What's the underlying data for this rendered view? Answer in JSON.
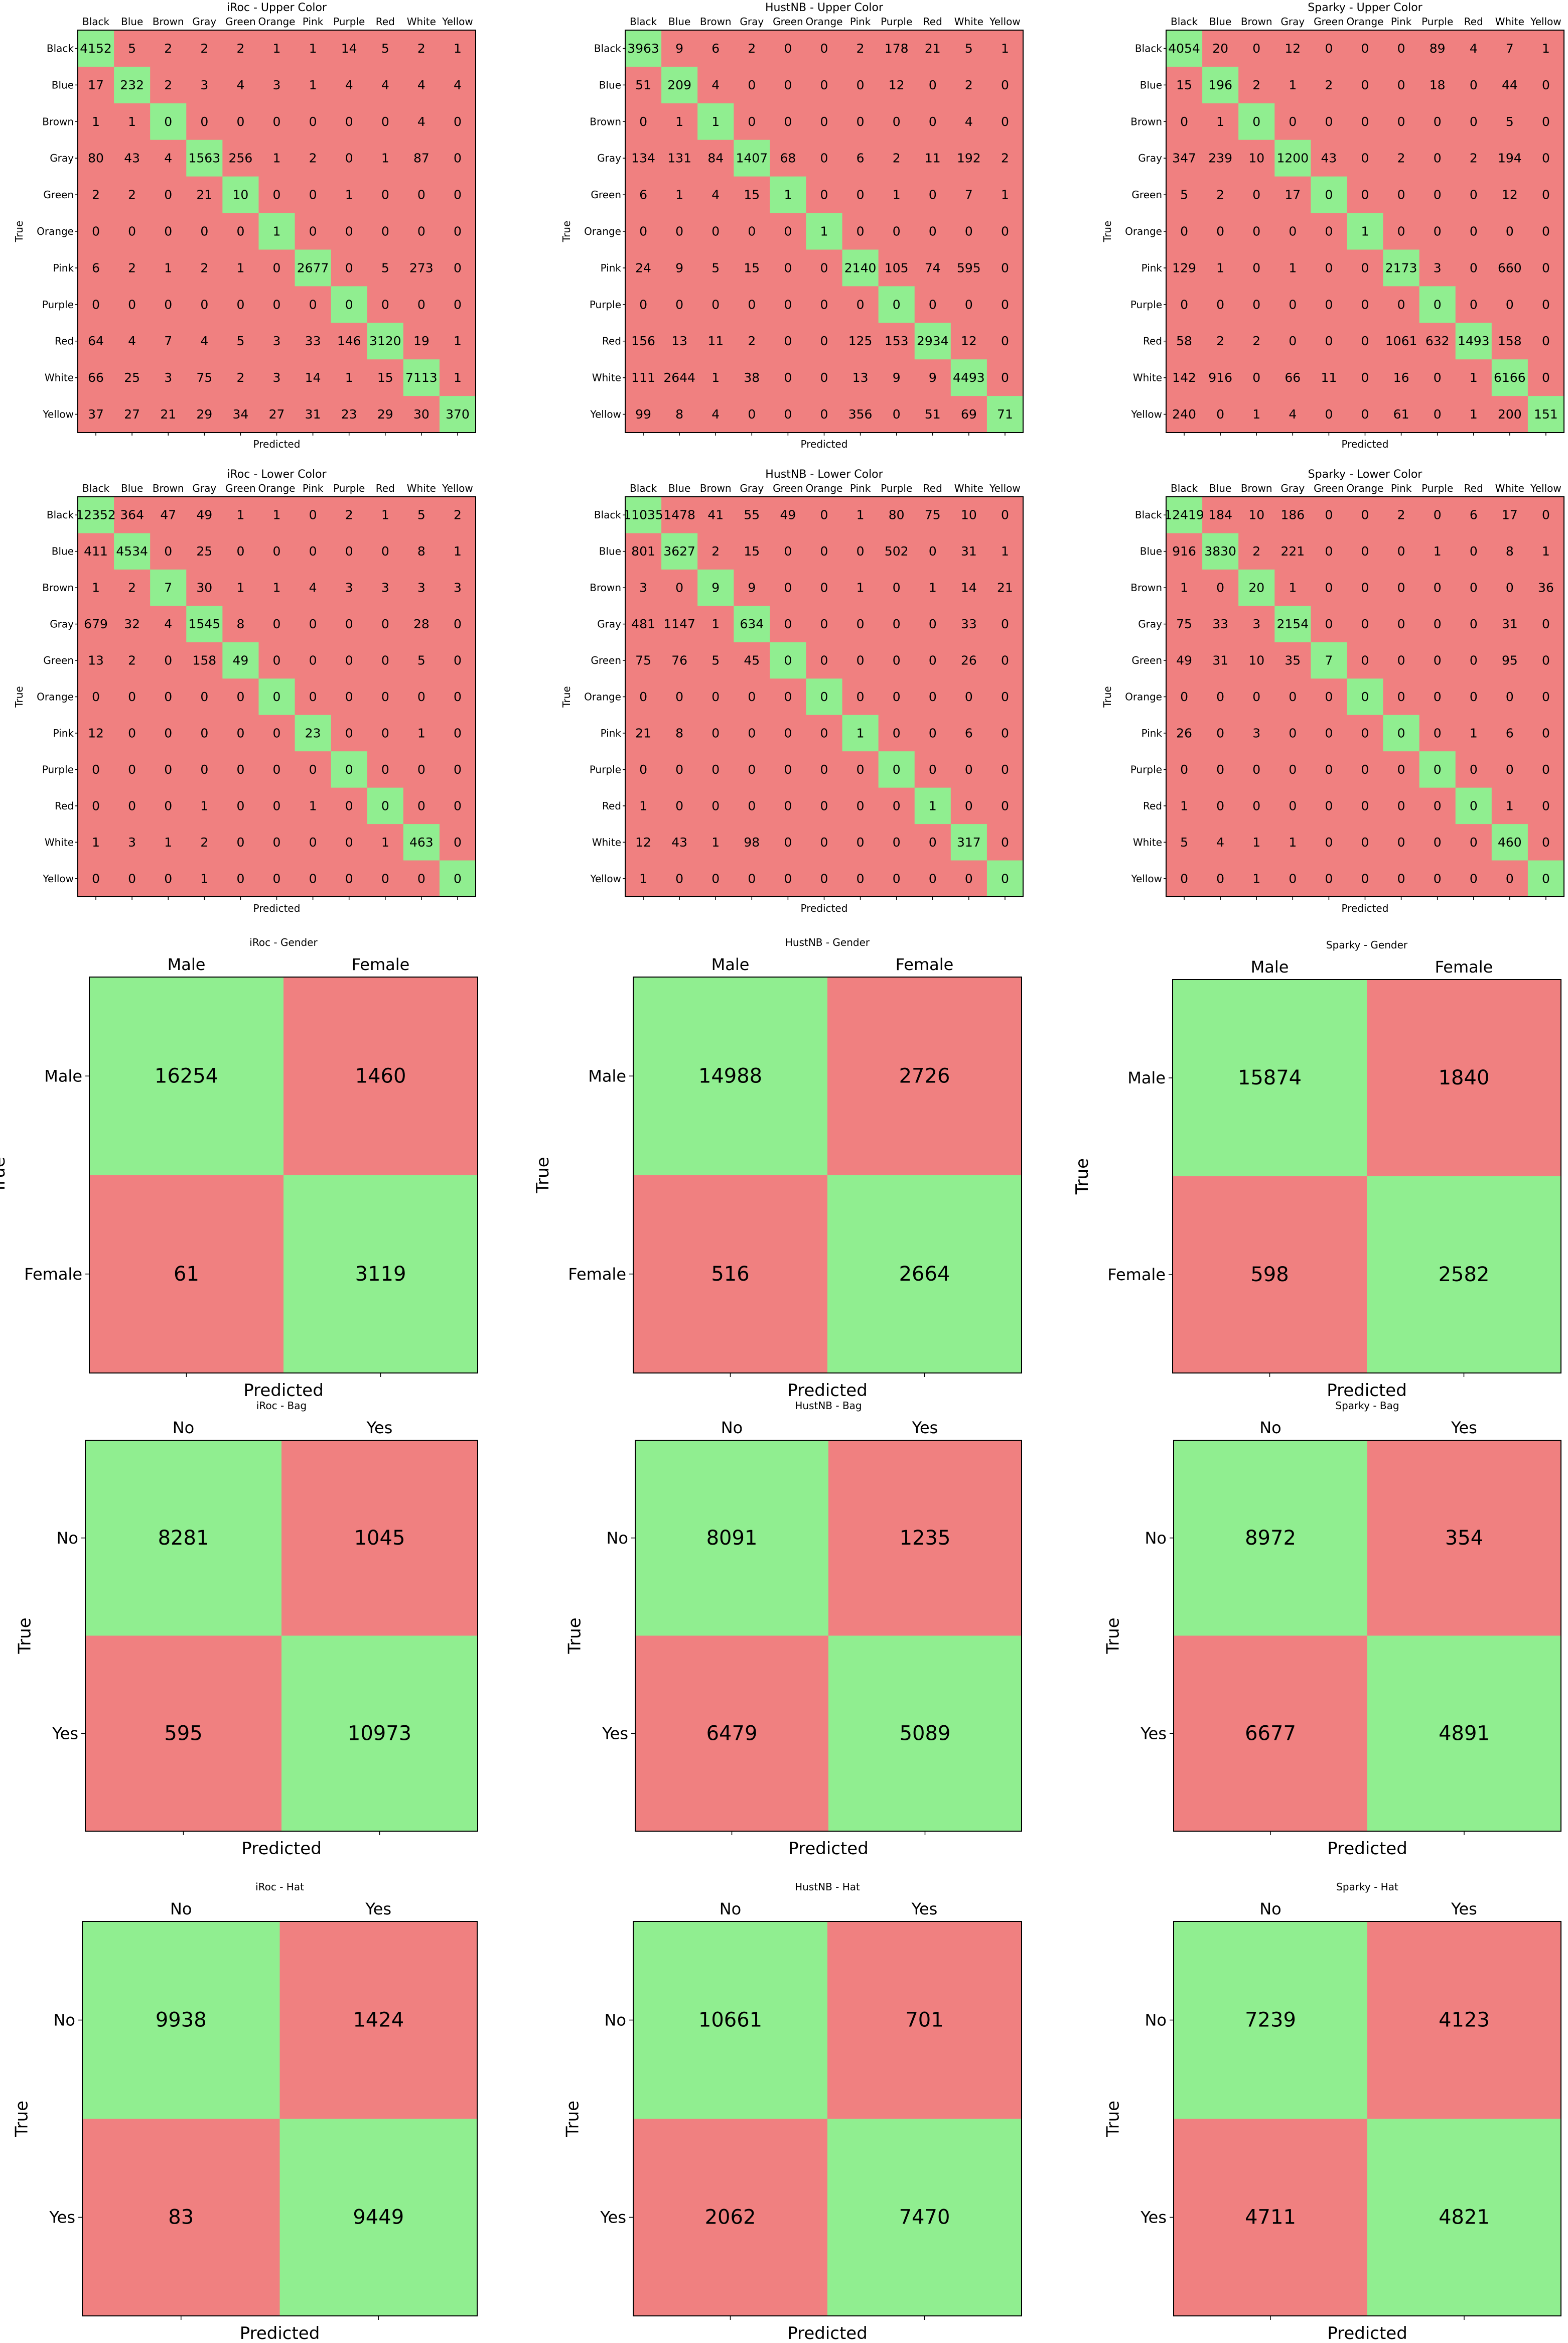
{
  "colors": {
    "correct": "#90ee90",
    "incorrect": "#f08080",
    "frame": "#000000"
  },
  "chart_data": [
    {
      "type": "heatmap",
      "title": "iRoc - Upper Color",
      "xlabel": "Predicted",
      "ylabel": "True",
      "labels": [
        "Black",
        "Blue",
        "Brown",
        "Gray",
        "Green",
        "Orange",
        "Pink",
        "Purple",
        "Red",
        "White",
        "Yellow"
      ],
      "matrix": [
        [
          4152,
          5,
          2,
          2,
          2,
          1,
          1,
          14,
          5,
          2,
          1
        ],
        [
          17,
          232,
          2,
          3,
          4,
          3,
          1,
          4,
          4,
          4,
          4
        ],
        [
          1,
          1,
          0,
          0,
          0,
          0,
          0,
          0,
          0,
          4,
          0
        ],
        [
          80,
          43,
          4,
          1563,
          256,
          1,
          2,
          0,
          1,
          87,
          0
        ],
        [
          2,
          2,
          0,
          21,
          10,
          0,
          0,
          1,
          0,
          0,
          0
        ],
        [
          0,
          0,
          0,
          0,
          0,
          1,
          0,
          0,
          0,
          0,
          0
        ],
        [
          6,
          2,
          1,
          2,
          1,
          0,
          2677,
          0,
          5,
          273,
          0
        ],
        [
          0,
          0,
          0,
          0,
          0,
          0,
          0,
          0,
          0,
          0,
          0
        ],
        [
          64,
          4,
          7,
          4,
          5,
          3,
          33,
          146,
          3120,
          19,
          1
        ],
        [
          66,
          25,
          3,
          75,
          2,
          3,
          14,
          1,
          15,
          7113,
          1
        ],
        [
          37,
          27,
          21,
          29,
          34,
          27,
          31,
          23,
          29,
          30,
          370
        ]
      ]
    },
    {
      "type": "heatmap",
      "title": "HustNB - Upper Color",
      "xlabel": "Predicted",
      "ylabel": "True",
      "labels": [
        "Black",
        "Blue",
        "Brown",
        "Gray",
        "Green",
        "Orange",
        "Pink",
        "Purple",
        "Red",
        "White",
        "Yellow"
      ],
      "matrix": [
        [
          3963,
          9,
          6,
          2,
          0,
          0,
          2,
          178,
          21,
          5,
          1
        ],
        [
          51,
          209,
          4,
          0,
          0,
          0,
          0,
          12,
          0,
          2,
          0
        ],
        [
          0,
          1,
          1,
          0,
          0,
          0,
          0,
          0,
          0,
          4,
          0
        ],
        [
          134,
          131,
          84,
          1407,
          68,
          0,
          6,
          2,
          11,
          192,
          2
        ],
        [
          6,
          1,
          4,
          15,
          1,
          0,
          0,
          1,
          0,
          7,
          1
        ],
        [
          0,
          0,
          0,
          0,
          0,
          1,
          0,
          0,
          0,
          0,
          0
        ],
        [
          24,
          9,
          5,
          15,
          0,
          0,
          2140,
          105,
          74,
          595,
          0
        ],
        [
          0,
          0,
          0,
          0,
          0,
          0,
          0,
          0,
          0,
          0,
          0
        ],
        [
          156,
          13,
          11,
          2,
          0,
          0,
          125,
          153,
          2934,
          12,
          0
        ],
        [
          111,
          2644,
          1,
          38,
          0,
          0,
          13,
          9,
          9,
          4493,
          0
        ],
        [
          99,
          8,
          4,
          0,
          0,
          0,
          356,
          0,
          51,
          69,
          71
        ]
      ]
    },
    {
      "type": "heatmap",
      "title": "Sparky - Upper Color",
      "xlabel": "Predicted",
      "ylabel": "True",
      "labels": [
        "Black",
        "Blue",
        "Brown",
        "Gray",
        "Green",
        "Orange",
        "Pink",
        "Purple",
        "Red",
        "White",
        "Yellow"
      ],
      "matrix": [
        [
          4054,
          20,
          0,
          12,
          0,
          0,
          0,
          89,
          4,
          7,
          1
        ],
        [
          15,
          196,
          2,
          1,
          2,
          0,
          0,
          18,
          0,
          44,
          0
        ],
        [
          0,
          1,
          0,
          0,
          0,
          0,
          0,
          0,
          0,
          5,
          0
        ],
        [
          347,
          239,
          10,
          1200,
          43,
          0,
          2,
          0,
          2,
          194,
          0
        ],
        [
          5,
          2,
          0,
          17,
          0,
          0,
          0,
          0,
          0,
          12,
          0
        ],
        [
          0,
          0,
          0,
          0,
          0,
          1,
          0,
          0,
          0,
          0,
          0
        ],
        [
          129,
          1,
          0,
          1,
          0,
          0,
          2173,
          3,
          0,
          660,
          0
        ],
        [
          0,
          0,
          0,
          0,
          0,
          0,
          0,
          0,
          0,
          0,
          0
        ],
        [
          58,
          2,
          2,
          0,
          0,
          0,
          1061,
          632,
          1493,
          158,
          0
        ],
        [
          142,
          916,
          0,
          66,
          11,
          0,
          16,
          0,
          1,
          6166,
          0
        ],
        [
          240,
          0,
          1,
          4,
          0,
          0,
          61,
          0,
          1,
          200,
          151
        ]
      ]
    },
    {
      "type": "heatmap",
      "title": "iRoc - Lower Color",
      "xlabel": "Predicted",
      "ylabel": "True",
      "labels": [
        "Black",
        "Blue",
        "Brown",
        "Gray",
        "Green",
        "Orange",
        "Pink",
        "Purple",
        "Red",
        "White",
        "Yellow"
      ],
      "matrix": [
        [
          12352,
          364,
          47,
          49,
          1,
          1,
          0,
          2,
          1,
          5,
          2
        ],
        [
          411,
          4534,
          0,
          25,
          0,
          0,
          0,
          0,
          0,
          8,
          1
        ],
        [
          1,
          2,
          7,
          30,
          1,
          1,
          4,
          3,
          3,
          3,
          3
        ],
        [
          679,
          32,
          4,
          1545,
          8,
          0,
          0,
          0,
          0,
          28,
          0
        ],
        [
          13,
          2,
          0,
          158,
          49,
          0,
          0,
          0,
          0,
          5,
          0
        ],
        [
          0,
          0,
          0,
          0,
          0,
          0,
          0,
          0,
          0,
          0,
          0
        ],
        [
          12,
          0,
          0,
          0,
          0,
          0,
          23,
          0,
          0,
          1,
          0
        ],
        [
          0,
          0,
          0,
          0,
          0,
          0,
          0,
          0,
          0,
          0,
          0
        ],
        [
          0,
          0,
          0,
          1,
          0,
          0,
          1,
          0,
          0,
          0,
          0
        ],
        [
          1,
          3,
          1,
          2,
          0,
          0,
          0,
          0,
          1,
          463,
          0
        ],
        [
          0,
          0,
          0,
          1,
          0,
          0,
          0,
          0,
          0,
          0,
          0
        ]
      ]
    },
    {
      "type": "heatmap",
      "title": "HustNB - Lower Color",
      "xlabel": "Predicted",
      "ylabel": "True",
      "labels": [
        "Black",
        "Blue",
        "Brown",
        "Gray",
        "Green",
        "Orange",
        "Pink",
        "Purple",
        "Red",
        "White",
        "Yellow"
      ],
      "matrix": [
        [
          11035,
          1478,
          41,
          55,
          49,
          0,
          1,
          80,
          75,
          10,
          0
        ],
        [
          801,
          3627,
          2,
          15,
          0,
          0,
          0,
          502,
          0,
          31,
          1
        ],
        [
          3,
          0,
          9,
          9,
          0,
          0,
          1,
          0,
          1,
          14,
          21
        ],
        [
          481,
          1147,
          1,
          634,
          0,
          0,
          0,
          0,
          0,
          33,
          0
        ],
        [
          75,
          76,
          5,
          45,
          0,
          0,
          0,
          0,
          0,
          26,
          0
        ],
        [
          0,
          0,
          0,
          0,
          0,
          0,
          0,
          0,
          0,
          0,
          0
        ],
        [
          21,
          8,
          0,
          0,
          0,
          0,
          1,
          0,
          0,
          6,
          0
        ],
        [
          0,
          0,
          0,
          0,
          0,
          0,
          0,
          0,
          0,
          0,
          0
        ],
        [
          1,
          0,
          0,
          0,
          0,
          0,
          0,
          0,
          1,
          0,
          0
        ],
        [
          12,
          43,
          1,
          98,
          0,
          0,
          0,
          0,
          0,
          317,
          0
        ],
        [
          1,
          0,
          0,
          0,
          0,
          0,
          0,
          0,
          0,
          0,
          0
        ]
      ]
    },
    {
      "type": "heatmap",
      "title": "Sparky - Lower Color",
      "xlabel": "Predicted",
      "ylabel": "True",
      "labels": [
        "Black",
        "Blue",
        "Brown",
        "Gray",
        "Green",
        "Orange",
        "Pink",
        "Purple",
        "Red",
        "White",
        "Yellow"
      ],
      "matrix": [
        [
          12419,
          184,
          10,
          186,
          0,
          0,
          2,
          0,
          6,
          17,
          0
        ],
        [
          916,
          3830,
          2,
          221,
          0,
          0,
          0,
          1,
          0,
          8,
          1
        ],
        [
          1,
          0,
          20,
          1,
          0,
          0,
          0,
          0,
          0,
          0,
          36
        ],
        [
          75,
          33,
          3,
          2154,
          0,
          0,
          0,
          0,
          0,
          31,
          0
        ],
        [
          49,
          31,
          10,
          35,
          7,
          0,
          0,
          0,
          0,
          95,
          0
        ],
        [
          0,
          0,
          0,
          0,
          0,
          0,
          0,
          0,
          0,
          0,
          0
        ],
        [
          26,
          0,
          3,
          0,
          0,
          0,
          0,
          0,
          1,
          6,
          0
        ],
        [
          0,
          0,
          0,
          0,
          0,
          0,
          0,
          0,
          0,
          0,
          0
        ],
        [
          1,
          0,
          0,
          0,
          0,
          0,
          0,
          0,
          0,
          1,
          0
        ],
        [
          5,
          4,
          1,
          1,
          0,
          0,
          0,
          0,
          0,
          460,
          0
        ],
        [
          0,
          0,
          1,
          0,
          0,
          0,
          0,
          0,
          0,
          0,
          0
        ]
      ]
    },
    {
      "type": "heatmap",
      "title": "iRoc - Gender",
      "xlabel": "Predicted",
      "ylabel": "True",
      "labels": [
        "Male",
        "Female"
      ],
      "matrix": [
        [
          16254,
          1460
        ],
        [
          61,
          3119
        ]
      ]
    },
    {
      "type": "heatmap",
      "title": "HustNB - Gender",
      "xlabel": "Predicted",
      "ylabel": "True",
      "labels": [
        "Male",
        "Female"
      ],
      "matrix": [
        [
          14988,
          2726
        ],
        [
          516,
          2664
        ]
      ]
    },
    {
      "type": "heatmap",
      "title": "Sparky - Gender",
      "xlabel": "Predicted",
      "ylabel": "True",
      "labels": [
        "Male",
        "Female"
      ],
      "matrix": [
        [
          15874,
          1840
        ],
        [
          598,
          2582
        ]
      ]
    },
    {
      "type": "heatmap",
      "title": "iRoc - Bag",
      "xlabel": "Predicted",
      "ylabel": "True",
      "labels": [
        "No",
        "Yes"
      ],
      "matrix": [
        [
          8281,
          1045
        ],
        [
          595,
          10973
        ]
      ]
    },
    {
      "type": "heatmap",
      "title": "HustNB - Bag",
      "xlabel": "Predicted",
      "ylabel": "True",
      "labels": [
        "No",
        "Yes"
      ],
      "matrix": [
        [
          8091,
          1235
        ],
        [
          6479,
          5089
        ]
      ]
    },
    {
      "type": "heatmap",
      "title": "Sparky - Bag",
      "xlabel": "Predicted",
      "ylabel": "True",
      "labels": [
        "No",
        "Yes"
      ],
      "matrix": [
        [
          8972,
          354
        ],
        [
          6677,
          4891
        ]
      ]
    },
    {
      "type": "heatmap",
      "title": "iRoc - Hat",
      "xlabel": "Predicted",
      "ylabel": "True",
      "labels": [
        "No",
        "Yes"
      ],
      "matrix": [
        [
          9938,
          1424
        ],
        [
          83,
          9449
        ]
      ]
    },
    {
      "type": "heatmap",
      "title": "HustNB - Hat",
      "xlabel": "Predicted",
      "ylabel": "True",
      "labels": [
        "No",
        "Yes"
      ],
      "matrix": [
        [
          10661,
          701
        ],
        [
          2062,
          7470
        ]
      ]
    },
    {
      "type": "heatmap",
      "title": "Sparky - Hat",
      "xlabel": "Predicted",
      "ylabel": "True",
      "labels": [
        "No",
        "Yes"
      ],
      "matrix": [
        [
          7239,
          4123
        ],
        [
          4711,
          4821
        ]
      ]
    }
  ]
}
